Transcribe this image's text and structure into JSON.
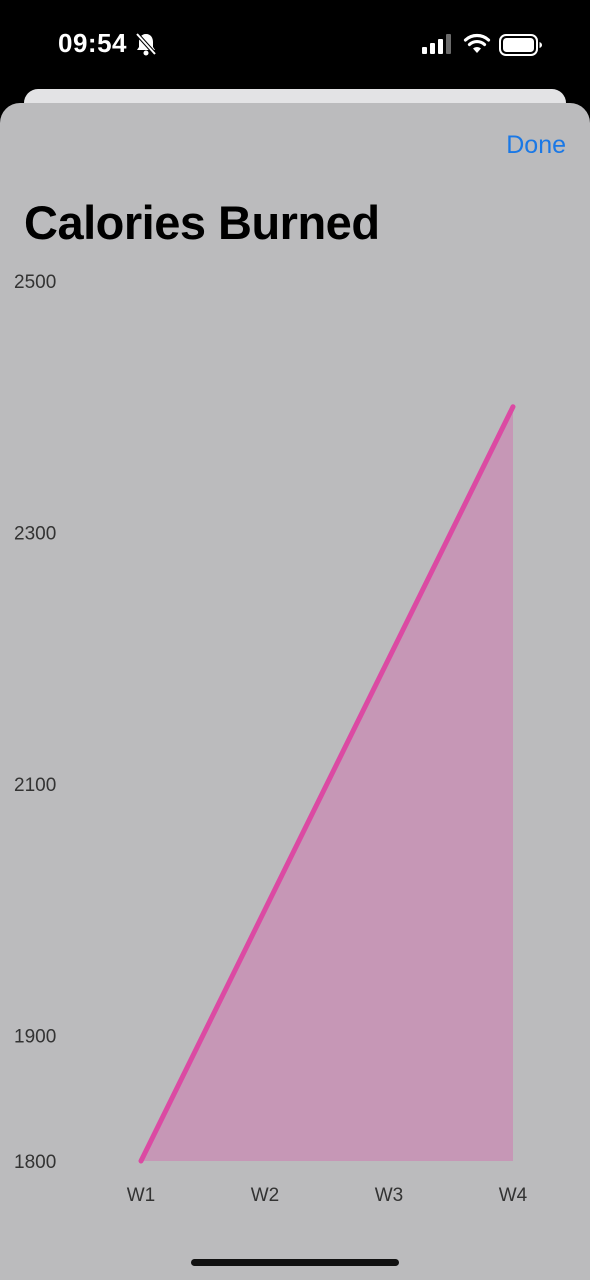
{
  "status_bar": {
    "time": "09:54"
  },
  "sheet": {
    "done_label": "Done",
    "title": "Calories Burned"
  },
  "colors": {
    "accent": "#1a78e6",
    "line": "#db4aa3",
    "fill": "#c697b6",
    "sheet_bg": "#bbbbbd"
  },
  "chart_data": {
    "type": "area",
    "categories": [
      "W1",
      "W2",
      "W3",
      "W4"
    ],
    "series": [
      {
        "values": [
          1800,
          2000,
          2200,
          2400
        ]
      }
    ],
    "y_ticks": [
      "2500",
      "2300",
      "2100",
      "1900",
      "1800"
    ],
    "y_tick_values": [
      2500,
      2300,
      2100,
      1900,
      1800
    ],
    "ylim": [
      1800,
      2500
    ],
    "grid": false
  }
}
